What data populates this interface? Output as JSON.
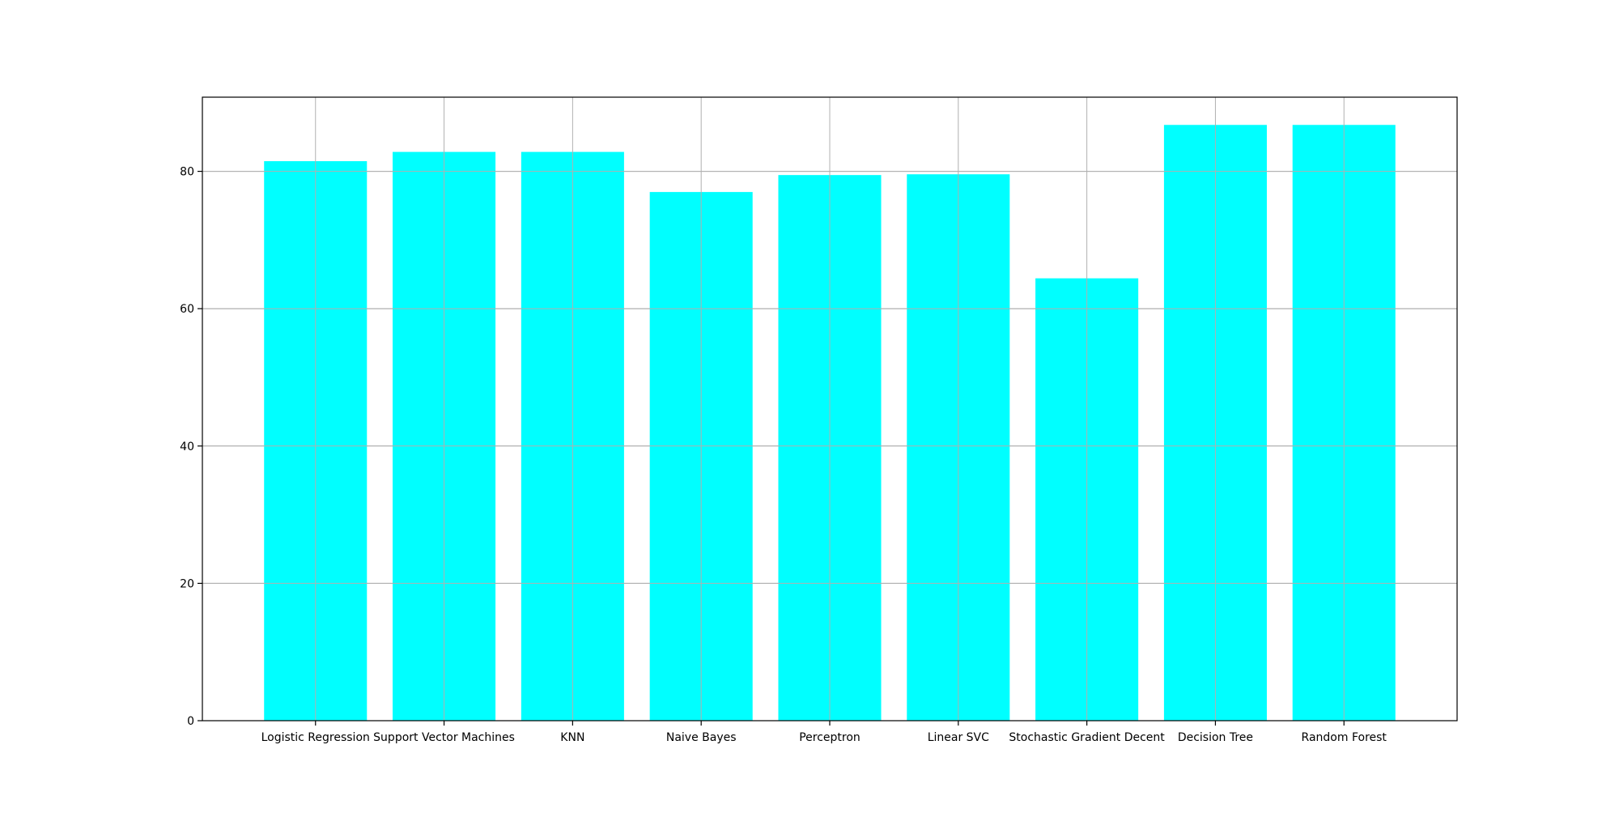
{
  "chart_data": {
    "type": "bar",
    "title": "",
    "xlabel": "",
    "ylabel": "",
    "categories": [
      "Logistic Regression",
      "Support Vector Machines",
      "KNN",
      "Naive Bayes",
      "Perceptron",
      "Linear SVC",
      "Stochastic Gradient Decent",
      "Decision Tree",
      "Random Forest"
    ],
    "values": [
      81.48,
      82.83,
      82.83,
      76.99,
      79.46,
      79.57,
      64.42,
      86.76,
      86.76
    ],
    "ylim": [
      0,
      90.8
    ],
    "yticks": [
      0,
      20,
      40,
      60,
      80
    ],
    "grid": true,
    "colors": {
      "bar": "#00ffff",
      "grid": "#b0b0b0",
      "axes": "#000000"
    }
  }
}
